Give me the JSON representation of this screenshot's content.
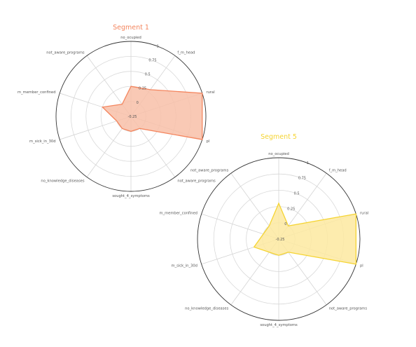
{
  "chart_data": [
    {
      "type": "radar",
      "title": "Segment 1",
      "color": "#f4865f",
      "fill": "#f8c0a8",
      "axes": [
        "no_ocupied",
        "f_m_head",
        "rural",
        "pl",
        "not_aware_programs",
        "sought_4_symptoms",
        "no_knowledge_diseases",
        "m_sick_in_30d",
        "m_member_confined",
        "not_aware_programs"
      ],
      "values": [
        0.25,
        0.3,
        1.0,
        1.0,
        0.0,
        0.0,
        0.0,
        0.0,
        0.25,
        0.0
      ],
      "rlim": [
        -0.25,
        1.0
      ],
      "rticks": [
        "-0.25",
        "0",
        "0.25",
        "0.5",
        "0.75",
        "1"
      ],
      "grid": true
    },
    {
      "type": "radar",
      "title": "Segment 5",
      "color": "#f5d432",
      "fill": "#fde9a0",
      "axes": [
        "no_ocupied",
        "f_m_head",
        "rural",
        "pl",
        "not_aware_programs",
        "sought_4_symptoms",
        "no_knowledge_diseases",
        "m_sick_in_30d",
        "m_member_confined",
        "not_aware_programs"
      ],
      "values": [
        0.3,
        0.0,
        1.0,
        1.0,
        0.0,
        0.0,
        0.0,
        0.15,
        0.0,
        0.0
      ],
      "rlim": [
        -0.25,
        1.0
      ],
      "rticks": [
        "-0.25",
        "0",
        "0.25",
        "0.5",
        "0.75",
        "1"
      ],
      "grid": true
    }
  ]
}
